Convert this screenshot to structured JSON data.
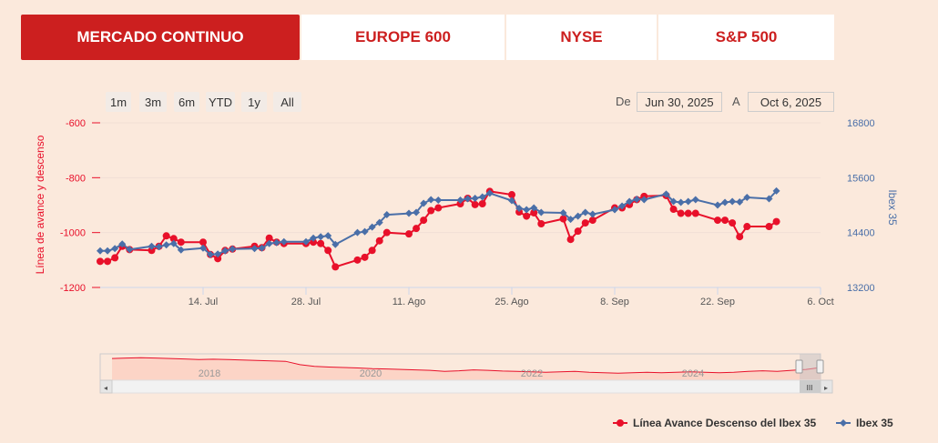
{
  "tabs": [
    {
      "label": "MERCADO CONTINUO",
      "active": true
    },
    {
      "label": "EUROPE 600",
      "active": false
    },
    {
      "label": "NYSE",
      "active": false
    },
    {
      "label": "S&P 500",
      "active": false
    }
  ],
  "range_buttons": [
    "1m",
    "3m",
    "6m",
    "YTD",
    "1y",
    "All"
  ],
  "date_range": {
    "from_label": "De",
    "from": "Jun 30, 2025",
    "to_label": "A",
    "to": "Oct 6, 2025"
  },
  "navigator": {
    "years": [
      "2018",
      "2020",
      "2022",
      "2024"
    ],
    "handle_label": "III"
  },
  "colors": {
    "red": "#e8102a",
    "blue": "#4a6fa8",
    "accent": "#cc1f1f"
  },
  "chart_data": {
    "type": "line",
    "x_ticks": [
      "14. Jul",
      "28. Jul",
      "11. Ago",
      "25. Ago",
      "8. Sep",
      "22. Sep",
      "6. Oct"
    ],
    "left_axis": {
      "label": "Línea de avance y descenso",
      "ticks": [
        "-600",
        "-800",
        "-1000",
        "-1200"
      ],
      "range": [
        -1200,
        -600
      ]
    },
    "right_axis": {
      "label": "Ibex 35",
      "ticks": [
        "16800",
        "15600",
        "14400",
        "13200"
      ],
      "range": [
        13200,
        16800
      ]
    },
    "xlim": [
      "2025-06-30",
      "2025-10-06"
    ],
    "grid": "horizontal",
    "legend_position": "bottom-right",
    "series": [
      {
        "name": "Línea Avance Descenso del Ibex 35",
        "axis": "left",
        "color": "#e8102a",
        "x": [
          "2025-06-30",
          "2025-07-01",
          "2025-07-02",
          "2025-07-03",
          "2025-07-04",
          "2025-07-07",
          "2025-07-08",
          "2025-07-09",
          "2025-07-10",
          "2025-07-11",
          "2025-07-14",
          "2025-07-15",
          "2025-07-16",
          "2025-07-17",
          "2025-07-18",
          "2025-07-21",
          "2025-07-22",
          "2025-07-23",
          "2025-07-24",
          "2025-07-25",
          "2025-07-28",
          "2025-07-29",
          "2025-07-30",
          "2025-07-31",
          "2025-08-01",
          "2025-08-04",
          "2025-08-05",
          "2025-08-06",
          "2025-08-07",
          "2025-08-08",
          "2025-08-11",
          "2025-08-12",
          "2025-08-13",
          "2025-08-14",
          "2025-08-15",
          "2025-08-18",
          "2025-08-19",
          "2025-08-20",
          "2025-08-21",
          "2025-08-22",
          "2025-08-25",
          "2025-08-26",
          "2025-08-27",
          "2025-08-28",
          "2025-08-29",
          "2025-09-01",
          "2025-09-02",
          "2025-09-03",
          "2025-09-04",
          "2025-09-05",
          "2025-09-08",
          "2025-09-09",
          "2025-09-10",
          "2025-09-11",
          "2025-09-12",
          "2025-09-15",
          "2025-09-16",
          "2025-09-17",
          "2025-09-18",
          "2025-09-19",
          "2025-09-22",
          "2025-09-23",
          "2025-09-24",
          "2025-09-25",
          "2025-09-26",
          "2025-09-29",
          "2025-09-30"
        ],
        "values": [
          -1105,
          -1105,
          -1092,
          -1050,
          -1062,
          -1065,
          -1050,
          -1012,
          -1022,
          -1035,
          -1035,
          -1080,
          -1095,
          -1065,
          -1060,
          -1050,
          -1055,
          -1020,
          -1035,
          -1040,
          -1040,
          -1035,
          -1040,
          -1065,
          -1125,
          -1100,
          -1090,
          -1065,
          -1030,
          -1000,
          -1005,
          -985,
          -955,
          -920,
          -910,
          -895,
          -875,
          -898,
          -895,
          -850,
          -862,
          -925,
          -940,
          -928,
          -968,
          -950,
          -1025,
          -995,
          -965,
          -955,
          -910,
          -910,
          -898,
          -880,
          -868,
          -865,
          -915,
          -930,
          -930,
          -930,
          -955,
          -955,
          -965,
          -1015,
          -978,
          -978,
          -960
        ]
      },
      {
        "name": "Ibex 35",
        "axis": "right",
        "color": "#4a6fa8",
        "x": [
          "2025-06-30",
          "2025-07-01",
          "2025-07-02",
          "2025-07-03",
          "2025-07-04",
          "2025-07-07",
          "2025-07-08",
          "2025-07-09",
          "2025-07-10",
          "2025-07-11",
          "2025-07-14",
          "2025-07-15",
          "2025-07-16",
          "2025-07-17",
          "2025-07-18",
          "2025-07-21",
          "2025-07-22",
          "2025-07-23",
          "2025-07-24",
          "2025-07-25",
          "2025-07-28",
          "2025-07-29",
          "2025-07-30",
          "2025-07-31",
          "2025-08-01",
          "2025-08-04",
          "2025-08-05",
          "2025-08-06",
          "2025-08-07",
          "2025-08-08",
          "2025-08-11",
          "2025-08-12",
          "2025-08-13",
          "2025-08-14",
          "2025-08-15",
          "2025-08-18",
          "2025-08-19",
          "2025-08-20",
          "2025-08-21",
          "2025-08-22",
          "2025-08-25",
          "2025-08-26",
          "2025-08-27",
          "2025-08-28",
          "2025-08-29",
          "2025-09-01",
          "2025-09-02",
          "2025-09-03",
          "2025-09-04",
          "2025-09-05",
          "2025-09-08",
          "2025-09-09",
          "2025-09-10",
          "2025-09-11",
          "2025-09-12",
          "2025-09-15",
          "2025-09-16",
          "2025-09-17",
          "2025-09-18",
          "2025-09-19",
          "2025-09-22",
          "2025-09-23",
          "2025-09-24",
          "2025-09-25",
          "2025-09-26",
          "2025-09-29",
          "2025-09-30"
        ],
        "values": [
          14000,
          14000,
          14050,
          14150,
          14030,
          14100,
          14090,
          14130,
          14160,
          14020,
          14060,
          13920,
          13930,
          14000,
          14040,
          14050,
          14060,
          14160,
          14180,
          14200,
          14200,
          14280,
          14310,
          14330,
          14140,
          14400,
          14420,
          14520,
          14620,
          14790,
          14820,
          14840,
          15040,
          15120,
          15110,
          15110,
          15140,
          15150,
          15180,
          15260,
          15100,
          14930,
          14900,
          14940,
          14840,
          14830,
          14690,
          14760,
          14840,
          14800,
          14900,
          14980,
          15080,
          15130,
          15120,
          15240,
          15080,
          15060,
          15080,
          15120,
          15000,
          15060,
          15080,
          15070,
          15170,
          15140,
          15310
        ]
      }
    ]
  }
}
